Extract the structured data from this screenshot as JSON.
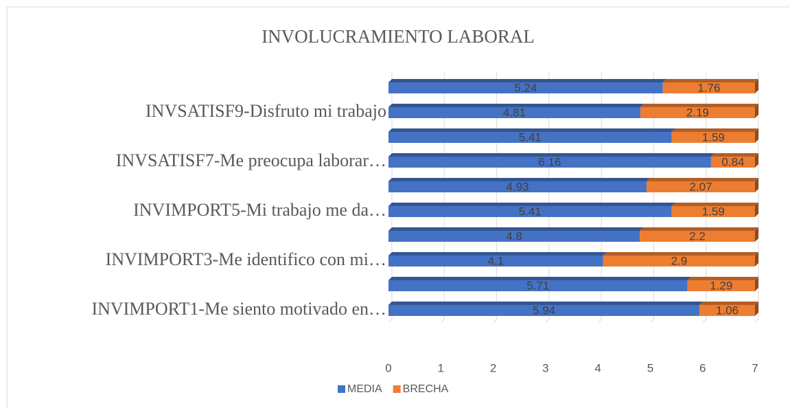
{
  "chart_data": {
    "type": "stacked_bar_horizontal",
    "title": "INVOLUCRAMIENTO LABORAL",
    "categories": [
      "INVIMPORT1-Me siento motivado en…",
      null,
      "INVIMPORT3-Me identifico con mi…",
      null,
      "INVIMPORT5-Mi trabajo me da…",
      null,
      "INVSATISF7-Me preocupa laborar…",
      null,
      "INVSATISF9-Disfruto mi trabajo",
      null
    ],
    "series": [
      {
        "name": "MEDIA",
        "color": "#4472c4",
        "values": [
          5.94,
          5.71,
          4.1,
          4.8,
          5.41,
          4.93,
          6.16,
          5.41,
          4.81,
          5.24
        ]
      },
      {
        "name": "BRECHA",
        "color": "#ed7d31",
        "values": [
          1.06,
          1.29,
          2.9,
          2.2,
          1.59,
          2.07,
          0.84,
          1.59,
          2.19,
          1.76
        ]
      }
    ],
    "xlim": [
      0,
      7
    ],
    "xticks": [
      0,
      1,
      2,
      3,
      4,
      5,
      6,
      7
    ],
    "grid": true,
    "legend": "bottom"
  }
}
